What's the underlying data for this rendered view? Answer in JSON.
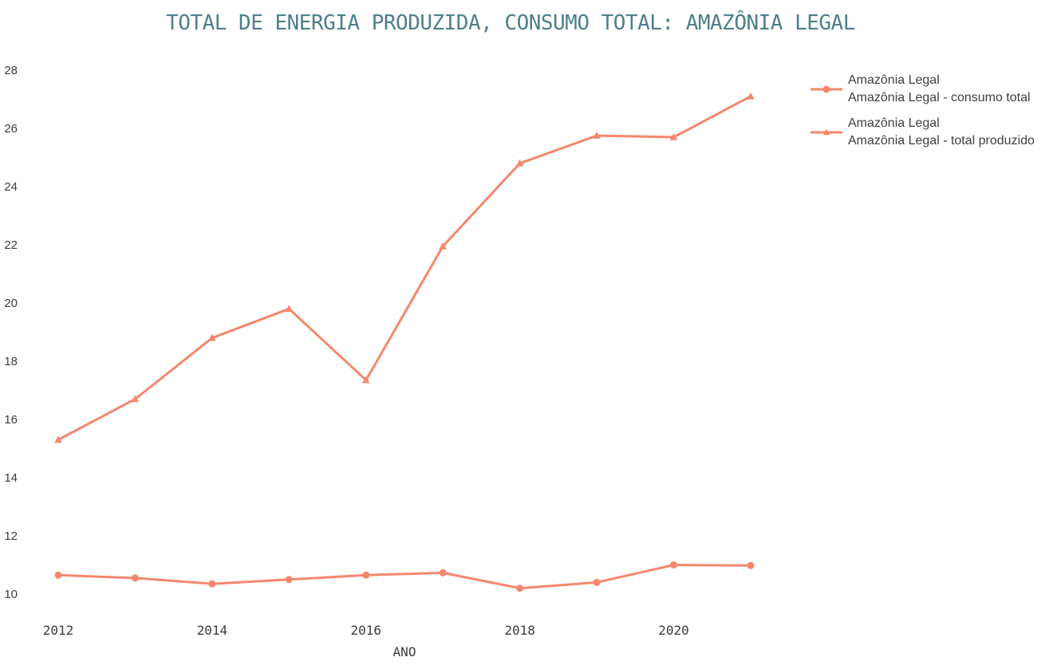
{
  "chart_data": {
    "type": "line",
    "title": "TOTAL DE ENERGIA PRODUZIDA, CONSUMO TOTAL: AMAZÔNIA LEGAL",
    "xlabel": "ANO",
    "ylabel": "",
    "x": [
      2012,
      2013,
      2014,
      2015,
      2016,
      2017,
      2018,
      2019,
      2020,
      2021
    ],
    "series": [
      {
        "id": "consumo-total",
        "name": "Amazônia Legal - consumo total",
        "marker": "circle",
        "color": "#f4876d",
        "values": [
          10.65,
          10.55,
          10.35,
          10.5,
          10.65,
          10.73,
          10.2,
          10.4,
          11.0,
          10.98
        ]
      },
      {
        "id": "total-produzido",
        "name": "Amazônia Legal - total produzido",
        "marker": "triangle-up",
        "color": "#f4876d",
        "values": [
          15.3,
          16.7,
          18.8,
          19.8,
          17.35,
          21.95,
          24.8,
          25.75,
          25.7,
          27.1
        ]
      }
    ],
    "xticks": [
      2012,
      2014,
      2016,
      2018,
      2020
    ],
    "yticks": [
      10,
      12,
      14,
      16,
      18,
      20,
      22,
      24,
      26,
      28
    ],
    "xlim": [
      2012,
      2021
    ],
    "ylim": [
      10,
      28
    ],
    "grid": false,
    "axis_lines": false,
    "legend_position": "top-right"
  },
  "legend": {
    "items": [
      {
        "line1": "Amazônia Legal",
        "line2": "Amazônia Legal - consumo total",
        "marker": "circle"
      },
      {
        "line1": "Amazônia Legal",
        "line2": "Amazônia Legal - total produzido",
        "marker": "triangle-up"
      }
    ]
  },
  "colors": {
    "series": "#f4876d",
    "title": "#4e7f8c",
    "tick_text": "#3c3c3c",
    "legend_text": "#3f3f3f",
    "background": "#ffffff"
  }
}
